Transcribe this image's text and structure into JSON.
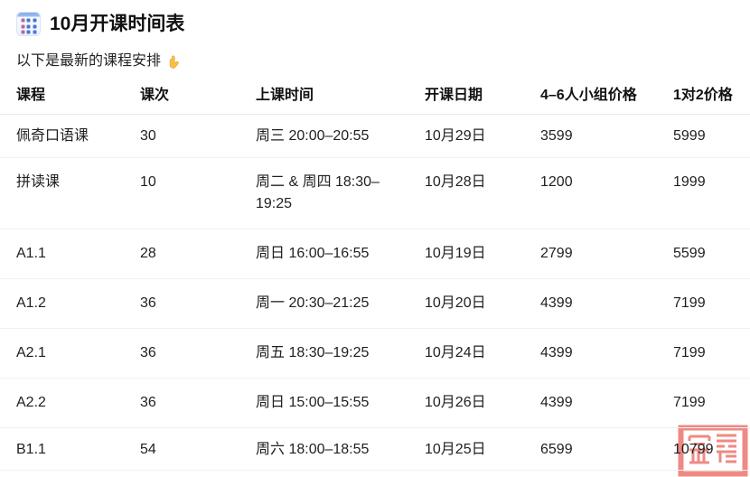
{
  "page": {
    "title": "10月开课时间表",
    "subtitle": "以下是最新的课程安排",
    "icons": {
      "title_icon": "calendar-icon",
      "subtitle_icon": "pointing-down-hand-icon",
      "watermark_icon": "red-seal-stamp"
    },
    "colors": {
      "watermark_red": "#ec7a72",
      "hand_yellow": "#f9bf45",
      "calendar_blue": "#4a74d8"
    }
  },
  "table": {
    "columns": [
      "课程",
      "课次",
      "上课时间",
      "开课日期",
      "4–6人小组价格",
      "1对2价格"
    ],
    "rows": [
      {
        "course": "佩奇口语课",
        "lessons": "30",
        "time": "周三 20:00–20:55",
        "start_date": "10月29日",
        "group_price": "3599",
        "one_on_two_price": "5999"
      },
      {
        "course": "拼读课",
        "lessons": "10",
        "time": "周二 & 周四 18:30–19:25",
        "start_date": "10月28日",
        "group_price": "1200",
        "one_on_two_price": "1999"
      },
      {
        "course": "A1.1",
        "lessons": "28",
        "time": "周日 16:00–16:55",
        "start_date": "10月19日",
        "group_price": "2799",
        "one_on_two_price": "5599"
      },
      {
        "course": "A1.2",
        "lessons": "36",
        "time": "周一 20:30–21:25",
        "start_date": "10月20日",
        "group_price": "4399",
        "one_on_two_price": "7199"
      },
      {
        "course": "A2.1",
        "lessons": "36",
        "time": "周五 18:30–19:25",
        "start_date": "10月24日",
        "group_price": "4399",
        "one_on_two_price": "7199"
      },
      {
        "course": "A2.2",
        "lessons": "36",
        "time": "周日 15:00–15:55",
        "start_date": "10月26日",
        "group_price": "4399",
        "one_on_two_price": "7199"
      },
      {
        "course": "B1.1",
        "lessons": "54",
        "time": "周六 18:00–18:55",
        "start_date": "10月25日",
        "group_price": "6599",
        "one_on_two_price": "10799"
      }
    ]
  }
}
